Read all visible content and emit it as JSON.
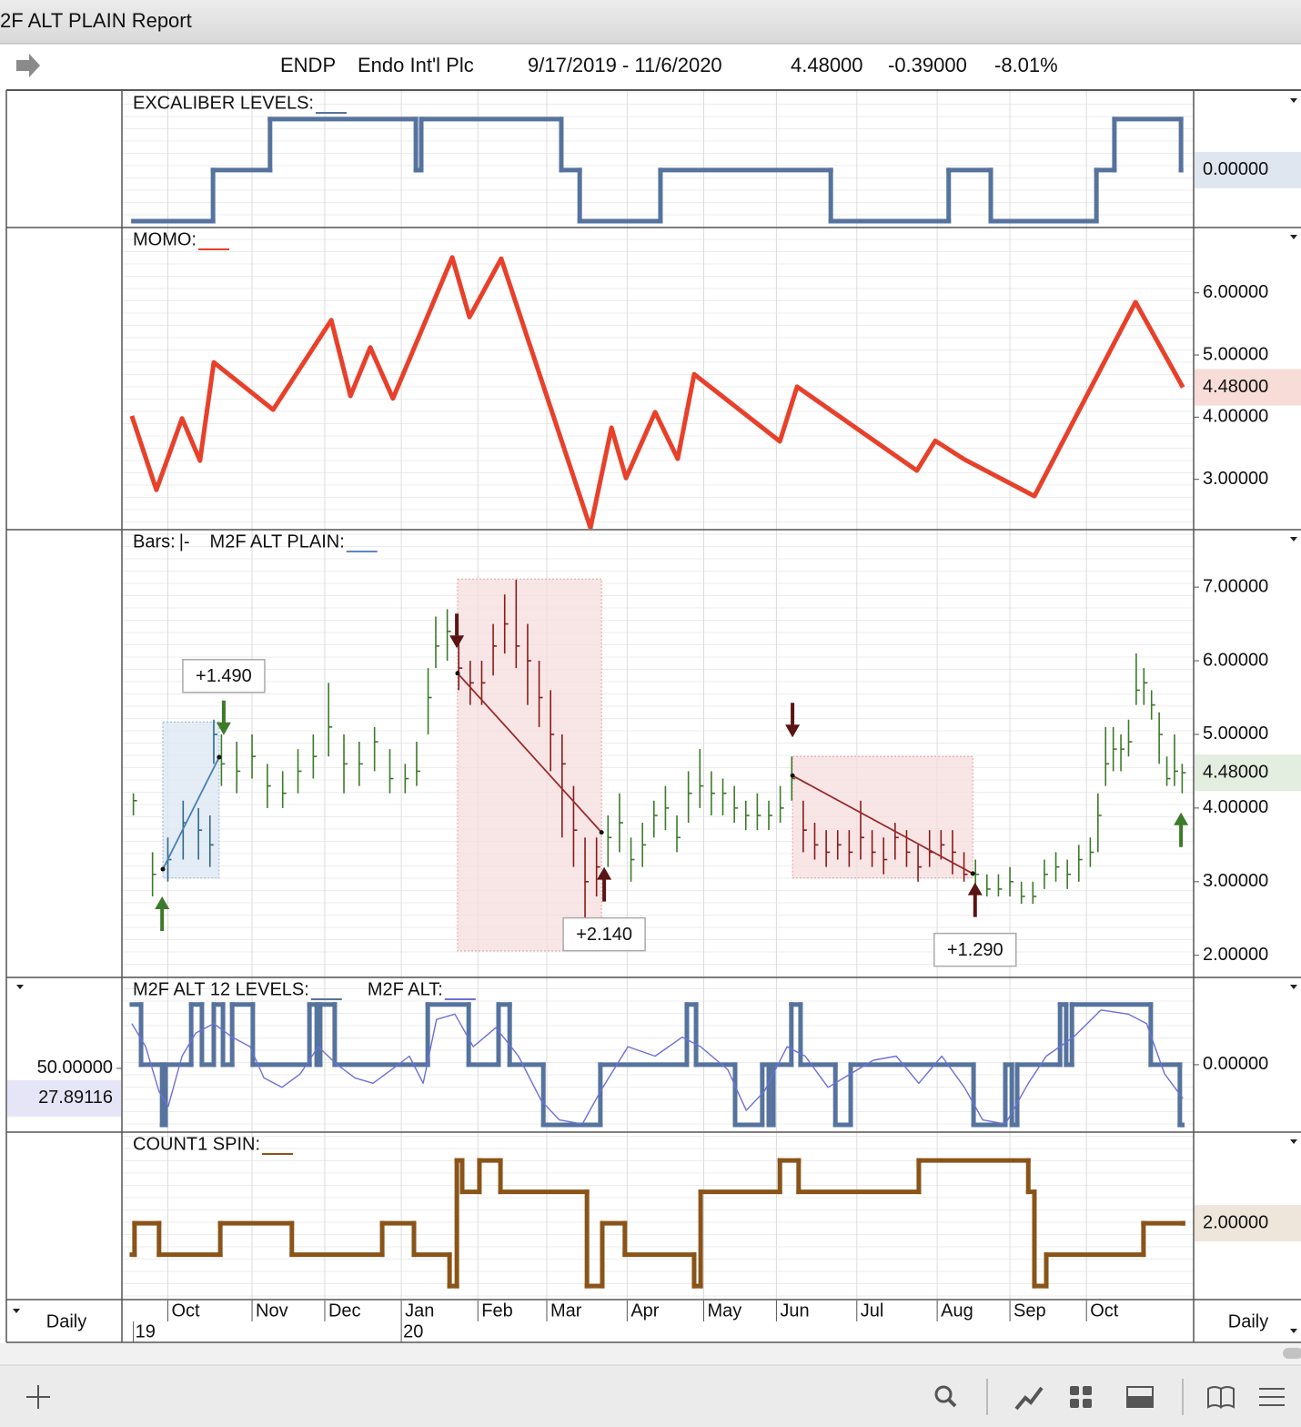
{
  "window_title": "2F ALT PLAIN Report",
  "header": {
    "symbol": "ENDP",
    "name": "Endo Int'l Plc",
    "range": "9/17/2019 - 11/6/2020",
    "last": "4.48000",
    "change": "-0.39000",
    "change_pct": "-8.01%"
  },
  "x_axis": {
    "xlim": [
      0,
      280
    ],
    "xticks": [
      {
        "value": 12,
        "label": "Oct"
      },
      {
        "value": 34,
        "label": "Nov"
      },
      {
        "value": 53,
        "label": "Dec"
      },
      {
        "value": 73,
        "label": "Jan"
      },
      {
        "value": 93,
        "label": "Feb"
      },
      {
        "value": 111,
        "label": "Mar"
      },
      {
        "value": 132,
        "label": "Apr"
      },
      {
        "value": 152,
        "label": "May"
      },
      {
        "value": 171,
        "label": "Jun"
      },
      {
        "value": 192,
        "label": "Jul"
      },
      {
        "value": 213,
        "label": "Aug"
      },
      {
        "value": 232,
        "label": "Sep"
      },
      {
        "value": 252,
        "label": "Oct"
      }
    ],
    "year_ticks": [
      {
        "value": 3,
        "label": "19"
      },
      {
        "value": 73,
        "label": "20"
      }
    ],
    "period_left": "Daily",
    "period_right": "Daily"
  },
  "chart_data": [
    {
      "type": "line",
      "series": [
        {
          "name": "EXCALIBER LEVELS:",
          "color": "#56739e",
          "step": true,
          "x": [
            3,
            23.8,
            38.7,
            76.8,
            78.2,
            114.8,
            119.6,
            140.7,
            185.2,
            216,
            227,
            254.6,
            259.3,
            276.7
          ],
          "values": [
            -1,
            0,
            1,
            0,
            1,
            0,
            -1,
            0,
            -1,
            0,
            -1,
            0,
            1,
            0
          ]
        }
      ],
      "ylim": [
        -1.125,
        1.55
      ],
      "last_value": {
        "value": 0,
        "label": "0.00000"
      },
      "last_value_bg": "#dfe6ef"
    },
    {
      "type": "line",
      "series": [
        {
          "name": "MOMO:",
          "color": "#e8402a",
          "step": false,
          "x": [
            2.6,
            9.0,
            15.7,
            20.4,
            24.0,
            39.5,
            54.7,
            59.7,
            64.9,
            70.8,
            86.3,
            90.8,
            99.1,
            122.4,
            127.9,
            131.7,
            139.3,
            145.2,
            149.5,
            171.9,
            176.4,
            207.7,
            212.5,
            220.1,
            238.4,
            264.8,
            277.2
          ],
          "values": [
            4.02,
            2.83,
            3.98,
            3.3,
            4.88,
            4.12,
            5.56,
            4.34,
            5.12,
            4.3,
            6.57,
            5.61,
            6.55,
            2.22,
            3.83,
            3.02,
            4.08,
            3.33,
            4.69,
            3.61,
            4.49,
            3.14,
            3.62,
            3.32,
            2.73,
            5.85,
            4.48
          ]
        }
      ],
      "ylim": [
        2.19,
        7.05
      ],
      "yticks": [
        {
          "value": 6,
          "label": "6.00000"
        },
        {
          "value": 5,
          "label": "5.00000"
        },
        {
          "value": 4,
          "label": "4.00000"
        },
        {
          "value": 3,
          "label": "3.00000"
        }
      ],
      "last_value": {
        "value": 4.48,
        "label": "4.48000"
      },
      "last_value_bg": "#f7dcd7"
    },
    {
      "type": "ohlc",
      "series": [
        {
          "name": "Bars:",
          "symbol": "|-",
          "color": "#3d7a2a",
          "x": [
            3,
            8,
            12,
            16,
            20,
            23,
            24,
            26,
            30,
            34,
            38,
            42,
            46,
            50,
            54,
            58,
            62,
            66,
            70,
            74,
            77,
            80,
            82,
            85,
            88,
            91,
            94,
            97,
            100,
            103,
            106,
            109,
            112,
            115,
            118,
            121,
            124,
            127,
            130,
            133,
            136,
            139,
            142,
            145,
            148,
            151,
            154,
            157,
            160,
            163,
            166,
            169,
            172,
            175,
            178,
            181,
            184,
            187,
            190,
            193,
            196,
            199,
            202,
            205,
            208,
            211,
            214,
            217,
            220,
            223,
            226,
            229,
            232,
            235,
            238,
            241,
            244,
            247,
            250,
            253,
            255,
            257,
            259,
            261,
            263,
            265,
            267,
            269,
            271,
            273,
            275,
            277
          ],
          "high": [
            4.2,
            3.4,
            3.6,
            4.1,
            4.0,
            3.9,
            5.2,
            5.0,
            4.9,
            5.0,
            4.6,
            4.5,
            4.8,
            5.0,
            5.7,
            5.0,
            4.9,
            5.1,
            4.8,
            4.6,
            4.9,
            5.9,
            6.6,
            6.7,
            6.3,
            6.0,
            6.0,
            6.5,
            6.9,
            7.1,
            6.5,
            6.0,
            5.6,
            5.0,
            4.3,
            3.6,
            3.6,
            3.9,
            4.2,
            3.6,
            3.8,
            4.1,
            4.3,
            3.9,
            4.5,
            4.8,
            4.5,
            4.4,
            4.3,
            4.1,
            4.2,
            4.1,
            4.3,
            4.7,
            4.1,
            3.8,
            3.7,
            3.7,
            3.7,
            4.1,
            3.7,
            3.6,
            3.8,
            3.7,
            3.5,
            3.7,
            3.7,
            3.7,
            3.4,
            3.3,
            3.1,
            3.1,
            3.2,
            3.0,
            3.0,
            3.3,
            3.4,
            3.3,
            3.5,
            3.6,
            4.2,
            5.1,
            5.1,
            5.0,
            5.2,
            6.1,
            5.9,
            5.6,
            5.3,
            4.7,
            5.0,
            4.6
          ],
          "low": [
            3.9,
            2.8,
            3.0,
            3.3,
            3.3,
            3.2,
            4.6,
            4.3,
            4.2,
            4.4,
            4.0,
            4.0,
            4.2,
            4.4,
            4.7,
            4.2,
            4.3,
            4.5,
            4.2,
            4.2,
            4.3,
            5.0,
            5.9,
            6.0,
            5.6,
            5.4,
            5.4,
            5.8,
            6.1,
            5.9,
            5.4,
            5.1,
            4.5,
            3.6,
            3.2,
            2.5,
            2.8,
            3.2,
            3.4,
            3.0,
            3.2,
            3.6,
            3.7,
            3.4,
            3.8,
            4.0,
            3.9,
            3.9,
            3.8,
            3.7,
            3.7,
            3.7,
            3.8,
            4.1,
            3.4,
            3.3,
            3.2,
            3.3,
            3.2,
            3.3,
            3.2,
            3.1,
            3.3,
            3.2,
            3.0,
            3.2,
            3.3,
            3.1,
            3.0,
            2.9,
            2.8,
            2.8,
            2.8,
            2.7,
            2.7,
            2.9,
            3.0,
            2.9,
            3.0,
            3.2,
            3.4,
            4.3,
            4.5,
            4.5,
            4.7,
            5.4,
            5.4,
            5.2,
            4.6,
            4.3,
            4.3,
            4.2
          ],
          "close": [
            4.1,
            3.1,
            3.3,
            3.8,
            3.7,
            3.5,
            5.0,
            4.6,
            4.5,
            4.7,
            4.3,
            4.2,
            4.5,
            4.7,
            5.1,
            4.6,
            4.6,
            4.9,
            4.4,
            4.4,
            4.5,
            5.5,
            6.2,
            6.4,
            5.9,
            5.7,
            5.7,
            6.2,
            6.5,
            6.2,
            6.0,
            5.5,
            5.0,
            4.6,
            3.7,
            3.0,
            3.2,
            3.6,
            3.8,
            3.3,
            3.5,
            3.9,
            4.0,
            3.6,
            4.2,
            4.3,
            4.2,
            4.2,
            4.0,
            3.9,
            3.9,
            3.9,
            4.0,
            4.4,
            3.7,
            3.5,
            3.4,
            3.5,
            3.4,
            3.6,
            3.4,
            3.3,
            3.6,
            3.4,
            3.2,
            3.4,
            3.5,
            3.4,
            3.1,
            3.1,
            2.9,
            2.9,
            3.0,
            2.8,
            2.8,
            3.1,
            3.2,
            3.1,
            3.3,
            3.4,
            3.9,
            4.6,
            4.8,
            4.8,
            4.9,
            5.6,
            5.7,
            5.4,
            5.0,
            4.4,
            4.5,
            4.48
          ]
        },
        {
          "name": "M2F ALT PLAIN:",
          "color": "#5b86c5"
        }
      ],
      "trades": [
        {
          "entry_x": 10.7,
          "exit_x": 25.4,
          "high": 5.17,
          "low": 3.05,
          "entry": 3.17,
          "exit": 4.69,
          "label": "+1.490",
          "box_color": "#dbe5f1",
          "border_color": "#9ab3d3",
          "line_color": "#4a80b0",
          "label_color": "#3d7a2a",
          "bar_color": "#2f6a8a"
        },
        {
          "entry_x": 87.7,
          "exit_x": 125.3,
          "high": 7.11,
          "low": 2.06,
          "entry": 5.83,
          "exit": 3.67,
          "label": "+2.140",
          "box_color": "#f6dede",
          "border_color": "#e0a0a0",
          "line_color": "#9b2a2a",
          "label_color": "#8b1a1a",
          "bar_color": "#8b1a1a"
        },
        {
          "entry_x": 175.2,
          "exit_x": 222.3,
          "high": 4.7,
          "low": 3.05,
          "entry": 4.44,
          "exit": 3.11,
          "label": "+1.290",
          "box_color": "#f6dede",
          "border_color": "#e0a0a0",
          "line_color": "#9b2a2a",
          "label_color": "#8b1a1a",
          "bar_color": "#8b1a1a"
        }
      ],
      "signals": [
        {
          "x": 10.5,
          "tip": 2.8,
          "dir": "up",
          "color": "#3d7a2a"
        },
        {
          "x": 26.6,
          "tip": 4.99,
          "dir": "down",
          "color": "#3d7a2a"
        },
        {
          "x": 87.5,
          "tip": 6.17,
          "dir": "down",
          "color": "#5a1414"
        },
        {
          "x": 126,
          "tip": 3.2,
          "dir": "up",
          "color": "#5a1414"
        },
        {
          "x": 175.2,
          "tip": 4.96,
          "dir": "down",
          "color": "#5a1414"
        },
        {
          "x": 222.9,
          "tip": 2.99,
          "dir": "up",
          "color": "#5a1414"
        },
        {
          "x": 276.7,
          "tip": 3.94,
          "dir": "up",
          "color": "#3d7a2a"
        }
      ],
      "ylim": [
        1.7,
        7.78
      ],
      "yticks": [
        {
          "value": 7,
          "label": "7.00000"
        },
        {
          "value": 6,
          "label": "6.00000"
        },
        {
          "value": 5,
          "label": "5.00000"
        },
        {
          "value": 4,
          "label": "4.00000"
        },
        {
          "value": 3,
          "label": "3.00000"
        },
        {
          "value": 2,
          "label": "2.00000"
        }
      ],
      "last_value": {
        "value": 4.48,
        "label": "4.48000"
      },
      "last_value_bg": "#e3ede0"
    },
    {
      "type": "line",
      "series": [
        {
          "name": "M2F ALT 12 LEVELS:",
          "color": "#56739e",
          "step": true,
          "axis": "y2",
          "x": [
            2.6,
            5,
            10.5,
            11.4,
            18.1,
            20.9,
            24,
            26.4,
            28.8,
            34.2,
            49,
            50.9,
            51.8,
            55.6,
            79.9,
            90.6,
            98.4,
            101.3,
            110.1,
            125,
            147.6,
            150,
            160.2,
            167.3,
            169,
            170.2,
            174.9,
            177.3,
            186.4,
            190.4,
            222.5,
            230.8,
            232.5,
            233.9,
            245.1,
            246.7,
            248.2,
            268.8,
            276.4,
            277
          ],
          "values": [
            1,
            0,
            -1,
            0,
            1,
            0,
            1,
            0,
            1,
            0,
            1,
            0,
            1,
            0,
            1,
            0,
            1,
            0,
            -1,
            0,
            1,
            0,
            -1,
            0,
            -1,
            0,
            1,
            0,
            -1,
            0,
            -1,
            0,
            -1,
            0,
            1,
            0,
            1,
            0,
            -1,
            -1
          ]
        },
        {
          "name": "M2F ALT:",
          "color": "#6c70d8",
          "step": false,
          "x": [
            2.6,
            6.2,
            9.7,
            12.1,
            15.7,
            19.3,
            24.0,
            28.8,
            33.5,
            37.1,
            41.8,
            46.6,
            51.3,
            56.1,
            60.9,
            65.6,
            70.4,
            75.1,
            78.7,
            82.2,
            87.0,
            91.8,
            97.7,
            103.6,
            109.6,
            114.3,
            120.3,
            125.0,
            132.2,
            139.3,
            146.4,
            151.2,
            158.3,
            163.1,
            167.8,
            173.8,
            178.5,
            184.5,
            190.4,
            196.3,
            202.3,
            208.2,
            214.2,
            220.1,
            224.9,
            230.8,
            236.8,
            241.5,
            248.6,
            255.8,
            262.9,
            267.7,
            272.4,
            277.2
          ],
          "values": [
            83,
            66,
            33,
            22,
            59,
            76,
            83,
            73,
            66,
            43,
            36,
            46,
            66,
            53,
            43,
            39,
            49,
            59,
            39,
            86,
            90,
            66,
            80,
            59,
            26,
            12,
            9,
            33,
            66,
            59,
            73,
            66,
            49,
            19,
            33,
            66,
            59,
            36,
            46,
            56,
            59,
            39,
            59,
            36,
            12,
            9,
            39,
            59,
            73,
            93,
            90,
            83,
            46,
            27.89116
          ]
        }
      ],
      "ylim": [
        3,
        117
      ],
      "yticks": [
        {
          "value": 50,
          "label": "50.00000"
        }
      ],
      "y2lim": [
        -1.12,
        1.45
      ],
      "y2ticks": [
        {
          "value": 0,
          "label": "0.00000"
        }
      ],
      "last_value": {
        "value": 27.89116,
        "label": "27.89116"
      },
      "last_value_bg": "#e5e5f7"
    },
    {
      "type": "line",
      "series": [
        {
          "name": "COUNT1 SPIN:",
          "color": "#8a5418",
          "step": true,
          "x": [
            2.6,
            3.3,
            9.7,
            25.7,
            44.4,
            68.0,
            76.3,
            85.6,
            87.5,
            88.9,
            93.4,
            98.9,
            121.5,
            125.5,
            131.4,
            149.5,
            151.2,
            171.9,
            176.8,
            208.2,
            236.8,
            238.4,
            241.5,
            266.9,
            277.2
          ],
          "values": [
            1,
            2,
            1,
            2,
            1,
            2,
            1,
            0,
            4,
            3,
            4,
            3,
            0,
            2,
            1,
            0,
            3,
            4,
            3,
            4,
            3,
            0,
            1,
            2,
            2
          ]
        }
      ],
      "ylim": [
        -0.43,
        4.9
      ],
      "last_value": {
        "value": 2,
        "label": "2.00000"
      },
      "last_value_bg": "#eee5db"
    }
  ]
}
